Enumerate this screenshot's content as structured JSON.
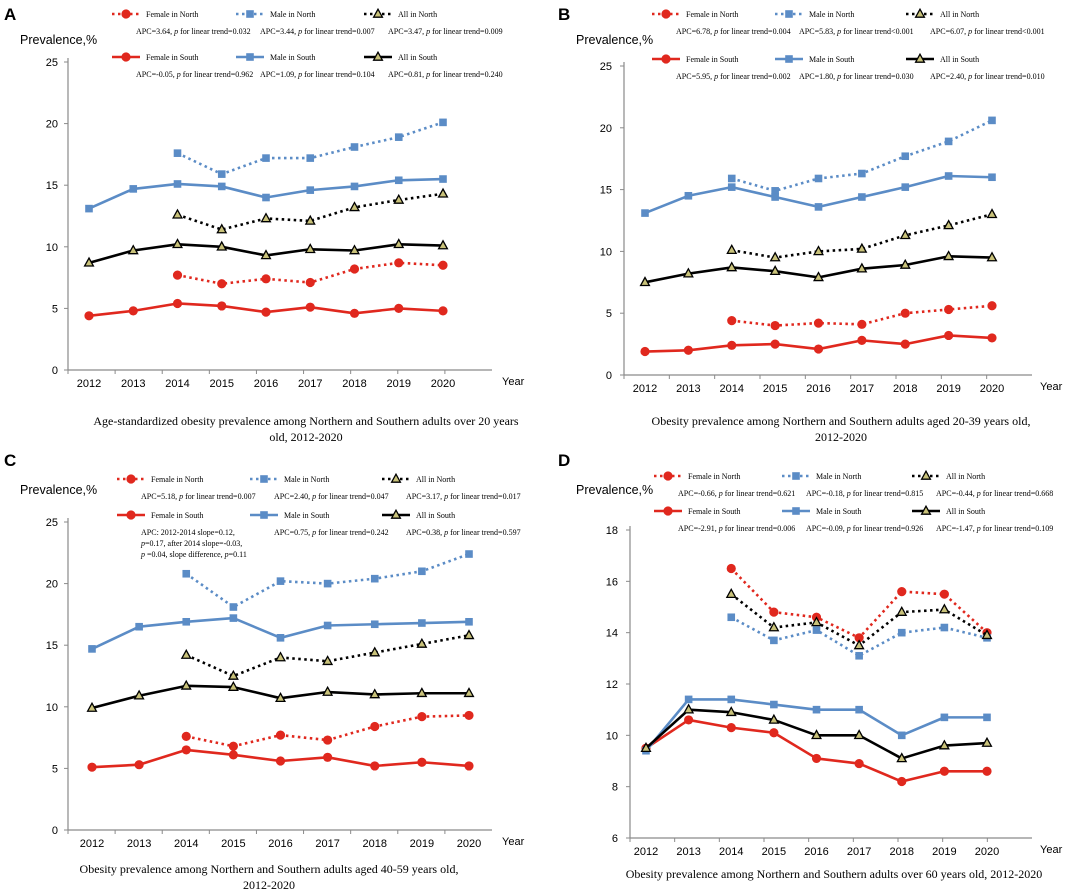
{
  "figure": {
    "year_axis_label": "Year",
    "y_axis_label": "Prevalence,%",
    "legend_names": [
      "Female in North",
      "Male in North",
      "All in North",
      "Female in South",
      "Male in South",
      "All in South"
    ],
    "colors": {
      "red": "#e0281e",
      "blue": "#5b8cc6",
      "black": "#000000",
      "triangle_fill": "#c9c27a"
    }
  },
  "chart_data": [
    {
      "panel": "A",
      "type": "line",
      "title": "Age-standardized obesity prevalence among Northern and Southern adults over 20 years old, 2012-2020",
      "caption_lines": [
        "Age-standardized obesity prevalence among Northern and Southern adults over 20 years",
        "old, 2012-2020"
      ],
      "xlabel": "Year",
      "ylabel": "Prevalence,%",
      "categories": [
        "2012",
        "2013",
        "2014",
        "2015",
        "2016",
        "2017",
        "2018",
        "2019",
        "2020"
      ],
      "ylim": [
        0,
        25
      ],
      "yticks": [
        0,
        5,
        10,
        15,
        20,
        25
      ],
      "series": [
        {
          "name": "Female in North",
          "values": [
            null,
            null,
            7.7,
            7.0,
            7.4,
            7.1,
            8.2,
            8.7,
            8.5
          ],
          "apc": [
            "APC=3.64, ",
            "p",
            " for linear trend=0.032"
          ]
        },
        {
          "name": "Male in North",
          "values": [
            null,
            null,
            17.6,
            15.9,
            17.2,
            17.2,
            18.1,
            18.9,
            20.1
          ],
          "apc": [
            "APC=3.44, ",
            "p",
            " for linear trend=0.007"
          ]
        },
        {
          "name": "All in North",
          "values": [
            null,
            null,
            12.6,
            11.4,
            12.3,
            12.1,
            13.2,
            13.8,
            14.3
          ],
          "apc": [
            "APC=3.47, ",
            "p",
            " for linear trend=0.009"
          ]
        },
        {
          "name": "Female in South",
          "values": [
            4.4,
            4.8,
            5.4,
            5.2,
            4.7,
            5.1,
            4.6,
            5.0,
            4.8
          ],
          "apc": [
            "APC=-0.05, ",
            "p",
            " for linear trend=0.962"
          ]
        },
        {
          "name": "Male in South",
          "values": [
            13.1,
            14.7,
            15.1,
            14.9,
            14.0,
            14.6,
            14.9,
            15.4,
            15.5
          ],
          "apc": [
            "APC=1.09, ",
            "p",
            " for linear trend=0.104"
          ]
        },
        {
          "name": "All in South",
          "values": [
            8.7,
            9.7,
            10.2,
            10.0,
            9.3,
            9.8,
            9.7,
            10.2,
            10.1
          ],
          "apc": [
            "APC=0.81, ",
            "p",
            " for linear trend=0.240"
          ]
        }
      ]
    },
    {
      "panel": "B",
      "type": "line",
      "title": "Obesity prevalence among Northern and Southern adults aged 20-39 years old, 2012-2020",
      "caption_lines": [
        "Obesity prevalence among Northern and Southern adults  aged  20-39 years old,",
        "2012-2020"
      ],
      "xlabel": "Year",
      "ylabel": "Prevalence,%",
      "categories": [
        "2012",
        "2013",
        "2014",
        "2015",
        "2016",
        "2017",
        "2018",
        "2019",
        "2020"
      ],
      "ylim": [
        0,
        25
      ],
      "yticks": [
        0,
        5,
        10,
        15,
        20,
        25
      ],
      "series": [
        {
          "name": "Female in North",
          "values": [
            null,
            null,
            4.4,
            4.0,
            4.2,
            4.1,
            5.0,
            5.3,
            5.6
          ],
          "apc": [
            "APC=6.78, ",
            "p",
            " for linear trend=0.004"
          ]
        },
        {
          "name": "Male in North",
          "values": [
            null,
            null,
            15.9,
            14.9,
            15.9,
            16.3,
            17.7,
            18.9,
            20.6
          ],
          "apc": [
            "APC=5.83, ",
            "p",
            " for linear trend<0.001"
          ]
        },
        {
          "name": "All in North",
          "values": [
            null,
            null,
            10.1,
            9.5,
            10.0,
            10.2,
            11.3,
            12.1,
            13.0
          ],
          "apc": [
            "APC=6.07, ",
            "p",
            " for linear trend<0.001"
          ]
        },
        {
          "name": "Female in South",
          "values": [
            1.9,
            2.0,
            2.4,
            2.5,
            2.1,
            2.8,
            2.5,
            3.2,
            3.0
          ],
          "apc": [
            "APC=5.95, ",
            "p",
            " for linear trend=0.002"
          ]
        },
        {
          "name": "Male in South",
          "values": [
            13.1,
            14.5,
            15.2,
            14.4,
            13.6,
            14.4,
            15.2,
            16.1,
            16.0
          ],
          "apc": [
            "APC=1.80, ",
            "p",
            " for linear trend=0.030"
          ]
        },
        {
          "name": "All in South",
          "values": [
            7.5,
            8.2,
            8.7,
            8.4,
            7.9,
            8.6,
            8.9,
            9.6,
            9.5
          ],
          "apc": [
            "APC=2.40, ",
            "p",
            " for linear trend=0.010"
          ]
        }
      ]
    },
    {
      "panel": "C",
      "type": "line",
      "title": "Obesity prevalence among Northern and Southern adults aged 40-59 years old, 2012-2020",
      "caption_lines": [
        "Obesity prevalence among Northern and Southern  adults  aged  40-59 years old,",
        "2012-2020"
      ],
      "xlabel": "Year",
      "ylabel": "Prevalence,%",
      "categories": [
        "2012",
        "2013",
        "2014",
        "2015",
        "2016",
        "2017",
        "2018",
        "2019",
        "2020"
      ],
      "ylim": [
        0,
        25
      ],
      "yticks": [
        0,
        5,
        10,
        15,
        20,
        25
      ],
      "series": [
        {
          "name": "Female in North",
          "values": [
            null,
            null,
            7.6,
            6.8,
            7.7,
            7.3,
            8.4,
            9.2,
            9.3
          ],
          "apc": [
            "APC=5.18, ",
            "p",
            " for linear trend=0.007"
          ]
        },
        {
          "name": "Male in North",
          "values": [
            null,
            null,
            20.8,
            18.1,
            20.2,
            20.0,
            20.4,
            21.0,
            22.4
          ],
          "apc": [
            "APC=2.40, ",
            "p",
            " for linear trend=0.047"
          ]
        },
        {
          "name": "All in North",
          "values": [
            null,
            null,
            14.2,
            12.5,
            14.0,
            13.7,
            14.4,
            15.1,
            15.8
          ],
          "apc": [
            "APC=3.17, ",
            "p",
            " for linear trend=0.017"
          ]
        },
        {
          "name": "Female in South",
          "values": [
            5.1,
            5.3,
            6.5,
            6.1,
            5.6,
            5.9,
            5.2,
            5.5,
            5.2
          ],
          "apc_lines": [
            [
              "APC: 2012-2014 slope=0.12,"
            ],
            [
              "p",
              "=0.17, after 2014 slope=-0.03,"
            ],
            [
              "p",
              " =0.04, slope difference, ",
              "p",
              "=0.11"
            ]
          ]
        },
        {
          "name": "Male in South",
          "values": [
            14.7,
            16.5,
            16.9,
            17.2,
            15.6,
            16.6,
            16.7,
            16.8,
            16.9
          ],
          "apc": [
            "APC=0.75, ",
            "p",
            " for linear trend=0.242"
          ]
        },
        {
          "name": "All in South",
          "values": [
            9.9,
            10.9,
            11.7,
            11.6,
            10.7,
            11.2,
            11.0,
            11.1,
            11.1
          ],
          "apc": [
            "APC=0.38, ",
            "p",
            " for linear trend=0.597"
          ]
        }
      ]
    },
    {
      "panel": "D",
      "type": "line",
      "title": "Obesity prevalence among Northern and Southern adults over 60 years old, 2012-2020",
      "caption_lines": [
        "Obesity prevalence among Northern and Southern adults  over 60 years old, 2012-2020"
      ],
      "xlabel": "Year",
      "ylabel": "Prevalence,%",
      "categories": [
        "2012",
        "2013",
        "2014",
        "2015",
        "2016",
        "2017",
        "2018",
        "2019",
        "2020"
      ],
      "ylim": [
        6,
        18
      ],
      "yticks": [
        6,
        8,
        10,
        12,
        14,
        16,
        18
      ],
      "series": [
        {
          "name": "Female in North",
          "values": [
            null,
            null,
            16.5,
            14.8,
            14.6,
            13.8,
            15.6,
            15.5,
            14.0
          ],
          "apc": [
            "APC=-0.66, ",
            "p",
            " for linear trend=0.621"
          ]
        },
        {
          "name": "Male in North",
          "values": [
            null,
            null,
            14.6,
            13.7,
            14.1,
            13.1,
            14.0,
            14.2,
            13.8
          ],
          "apc": [
            "APC=-0.18, ",
            "p",
            " for linear trend=0.815"
          ]
        },
        {
          "name": "All in North",
          "values": [
            null,
            null,
            15.5,
            14.2,
            14.4,
            13.5,
            14.8,
            14.9,
            13.9
          ],
          "apc": [
            "APC=-0.44, ",
            "p",
            " for linear trend=0.668"
          ]
        },
        {
          "name": "Female in South",
          "values": [
            9.5,
            10.6,
            10.3,
            10.1,
            9.1,
            8.9,
            8.2,
            8.6,
            8.6
          ],
          "apc": [
            "APC=-2.91, ",
            "p",
            " for linear trend=0.006"
          ]
        },
        {
          "name": "Male in South",
          "values": [
            9.4,
            11.4,
            11.4,
            11.2,
            11.0,
            11.0,
            10.0,
            10.7,
            10.7
          ],
          "apc": [
            "APC=-0.09, ",
            "p",
            " for linear trend=0.926"
          ]
        },
        {
          "name": "All in South",
          "values": [
            9.5,
            11.0,
            10.9,
            10.6,
            10.0,
            10.0,
            9.1,
            9.6,
            9.7
          ],
          "apc": [
            "APC=-1.47, ",
            "p",
            " for linear trend=0.109"
          ]
        }
      ]
    }
  ]
}
